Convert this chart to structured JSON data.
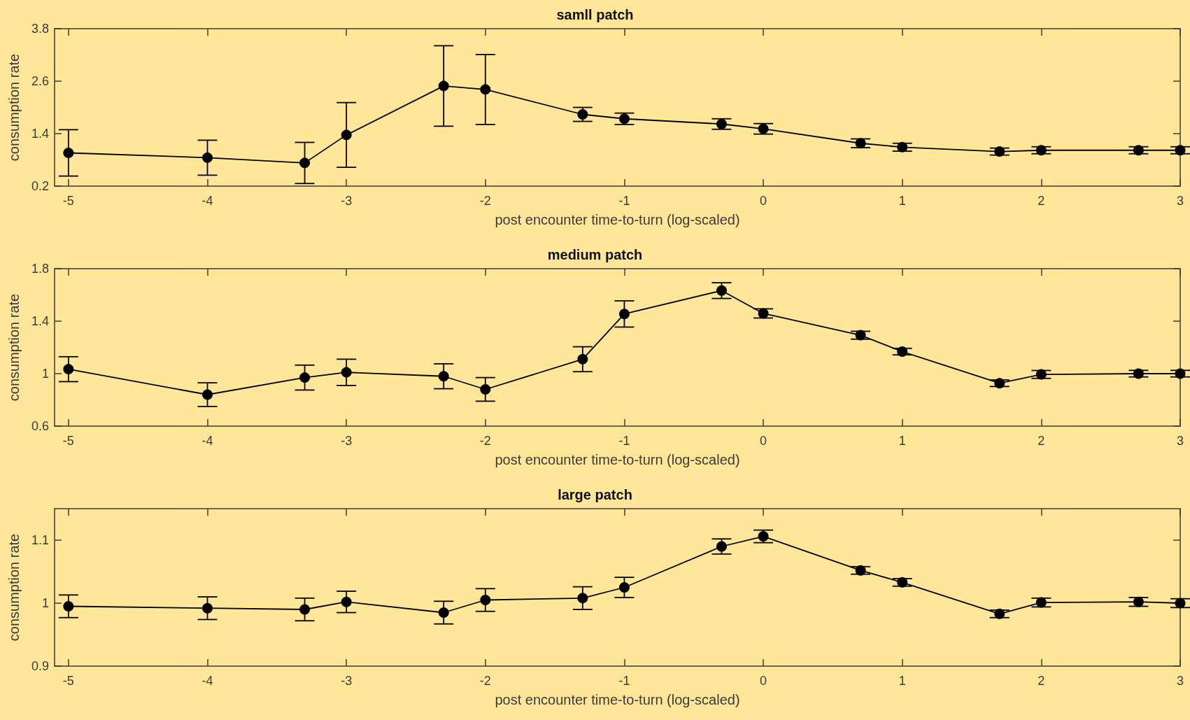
{
  "chart_data": [
    {
      "type": "line",
      "title": "samll patch",
      "xlabel": "post encounter time-to-turn (log-scaled)",
      "ylabel": "consumption rate",
      "x": [
        -5,
        -4,
        -3.3,
        -3,
        -2.3,
        -2,
        -1.3,
        -1,
        -0.3,
        0,
        0.7,
        1,
        1.7,
        2,
        2.7,
        3
      ],
      "xlim": [
        -5.1,
        3
      ],
      "xticks": [
        -5,
        -4,
        -3,
        -2,
        -1,
        0,
        1,
        2,
        3
      ],
      "ylim": [
        0.2,
        3.8
      ],
      "yticks": [
        0.2,
        1.4,
        2.6,
        3.8
      ],
      "grid": false,
      "marker": "circle",
      "line_style": "solid",
      "series": [
        {
          "color": "#000000",
          "values": [
            0.96,
            0.85,
            0.73,
            1.37,
            2.49,
            2.41,
            1.84,
            1.74,
            1.62,
            1.51,
            1.18,
            1.09,
            0.99,
            1.02,
            1.02,
            1.02
          ],
          "errors": [
            0.53,
            0.4,
            0.47,
            0.74,
            0.92,
            0.8,
            0.16,
            0.13,
            0.12,
            0.12,
            0.1,
            0.09,
            0.08,
            0.08,
            0.08,
            0.08
          ]
        }
      ]
    },
    {
      "type": "line",
      "title": "medium patch",
      "xlabel": "post encounter time-to-turn (log-scaled)",
      "ylabel": "consumption rate",
      "x": [
        -5,
        -4,
        -3.3,
        -3,
        -2.3,
        -2,
        -1.3,
        -1,
        -0.3,
        0,
        0.7,
        1,
        1.7,
        2,
        2.7,
        3
      ],
      "xlim": [
        -5.1,
        3
      ],
      "xticks": [
        -5,
        -4,
        -3,
        -2,
        -1,
        0,
        1,
        2,
        3
      ],
      "ylim": [
        0.6,
        1.8
      ],
      "yticks": [
        0.6,
        1,
        1.4,
        1.8
      ],
      "grid": false,
      "marker": "circle",
      "line_style": "solid",
      "series": [
        {
          "color": "#000000",
          "values": [
            1.034,
            0.84,
            0.97,
            1.01,
            0.98,
            0.88,
            1.11,
            1.455,
            1.633,
            1.459,
            1.293,
            1.168,
            0.927,
            0.994,
            1.0,
            1.0
          ],
          "errors": [
            0.095,
            0.09,
            0.095,
            0.1,
            0.095,
            0.09,
            0.095,
            0.1,
            0.06,
            0.035,
            0.03,
            0.025,
            0.025,
            0.03,
            0.025,
            0.025
          ]
        }
      ]
    },
    {
      "type": "line",
      "title": "large patch",
      "xlabel": "post encounter time-to-turn (log-scaled)",
      "ylabel": "consumption rate",
      "x": [
        -5,
        -4,
        -3.3,
        -3,
        -2.3,
        -2,
        -1.3,
        -1,
        -0.3,
        0,
        0.7,
        1,
        1.7,
        2,
        2.7,
        3
      ],
      "xlim": [
        -5.1,
        3
      ],
      "xticks": [
        -5,
        -4,
        -3,
        -2,
        -1,
        0,
        1,
        2,
        3
      ],
      "ylim": [
        0.9,
        1.15
      ],
      "yticks": [
        0.9,
        1,
        1.1
      ],
      "grid": false,
      "marker": "circle",
      "line_style": "solid",
      "series": [
        {
          "color": "#000000",
          "values": [
            0.995,
            0.992,
            0.99,
            1.002,
            0.985,
            1.005,
            1.008,
            1.025,
            1.09,
            1.106,
            1.052,
            1.033,
            0.983,
            1.001,
            1.002,
            1.0
          ],
          "errors": [
            0.018,
            0.018,
            0.018,
            0.017,
            0.018,
            0.018,
            0.018,
            0.016,
            0.012,
            0.01,
            0.006,
            0.006,
            0.006,
            0.007,
            0.007,
            0.007
          ]
        }
      ]
    }
  ]
}
